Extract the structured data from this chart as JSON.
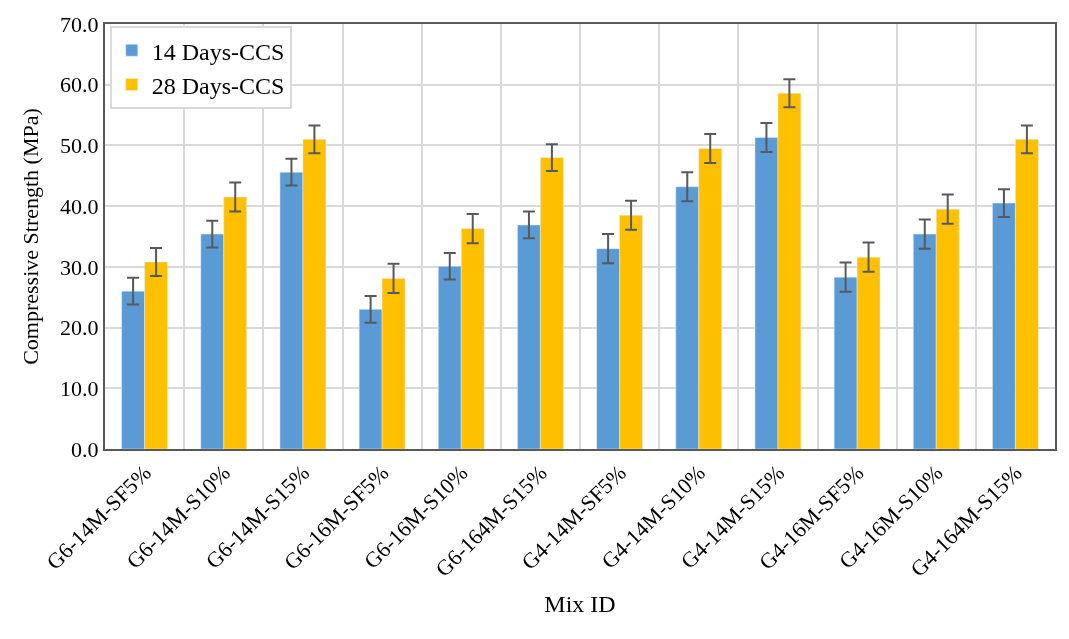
{
  "chart_data": {
    "type": "bar",
    "xlabel": "Mix ID",
    "ylabel": "Compressive Strength (MPa)",
    "categories": [
      "G6-14M-SF5%",
      "G6-14M-S10%",
      "G6-14M-S15%",
      "G6-16M-SF5%",
      "G6-16M-S10%",
      "G6-164M-S15%",
      "G4-14M-SF5%",
      "G4-14M-S10%",
      "G4-14M-S15%",
      "G4-16M-SF5%",
      "G4-16M-S10%",
      "G4-164M-S15%"
    ],
    "series": [
      {
        "name": "14 Days-CCS",
        "color": "#5b9bd5",
        "values": [
          26.0,
          35.4,
          45.6,
          23.0,
          30.1,
          36.9,
          33.0,
          43.2,
          51.3,
          28.3,
          35.4,
          40.5
        ],
        "errors": [
          2.2,
          2.2,
          2.2,
          2.2,
          2.2,
          2.2,
          2.4,
          2.4,
          2.4,
          2.4,
          2.4,
          2.3
        ]
      },
      {
        "name": "28 Days-CCS",
        "color": "#ffc000",
        "values": [
          30.8,
          41.5,
          51.0,
          28.1,
          36.3,
          48.0,
          38.5,
          49.5,
          58.6,
          31.6,
          39.5,
          51.0
        ],
        "errors": [
          2.3,
          2.4,
          2.3,
          2.4,
          2.4,
          2.2,
          2.4,
          2.4,
          2.3,
          2.4,
          2.4,
          2.3
        ]
      }
    ],
    "ylim": [
      0,
      70
    ],
    "yticks": [
      {
        "value": 0,
        "label": "0.0"
      },
      {
        "value": 10,
        "label": "10.0"
      },
      {
        "value": 20,
        "label": "20.0"
      },
      {
        "value": 30,
        "label": "30.0"
      },
      {
        "value": 40,
        "label": "40.0"
      },
      {
        "value": 50,
        "label": "50.0"
      },
      {
        "value": 60,
        "label": "60.0"
      },
      {
        "value": 70,
        "label": "70.0"
      }
    ],
    "grid": true,
    "legend": "top left"
  }
}
